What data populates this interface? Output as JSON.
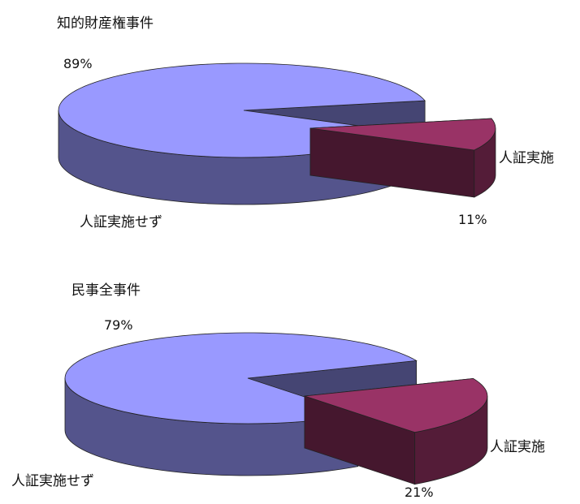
{
  "chart_data": [
    {
      "type": "pie",
      "title": "知的財産権事件",
      "categories": [
        "人証実施せず",
        "人証実施"
      ],
      "values": [
        89,
        11
      ],
      "labels": [
        "89%",
        "11%"
      ],
      "colors": {
        "人証実施せず": "#9999ff",
        "人証実施": "#993366"
      },
      "style": "3d-exploded"
    },
    {
      "type": "pie",
      "title": "民事全事件",
      "categories": [
        "人証実施せず",
        "人証実施"
      ],
      "values": [
        79,
        21
      ],
      "labels": [
        "79%",
        "21%"
      ],
      "colors": {
        "人証実施せず": "#9999ff",
        "人証実施": "#993366"
      },
      "style": "3d-exploded"
    }
  ]
}
